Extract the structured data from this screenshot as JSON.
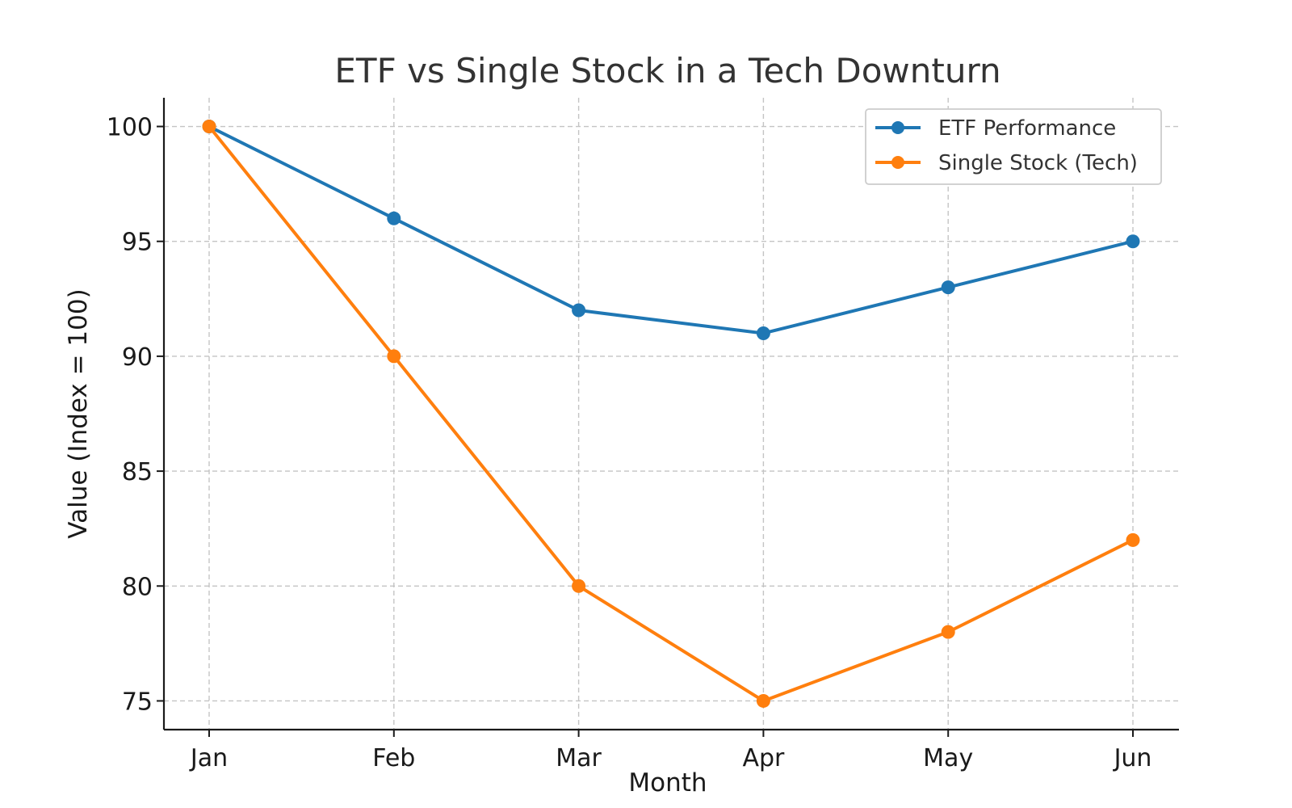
{
  "chart_data": {
    "type": "line",
    "title": "ETF vs Single Stock in a Tech Downturn",
    "xlabel": "Month",
    "ylabel": "Value (Index = 100)",
    "categories": [
      "Jan",
      "Feb",
      "Mar",
      "Apr",
      "May",
      "Jun"
    ],
    "series": [
      {
        "name": "ETF Performance",
        "color": "#1f77b4",
        "values": [
          100,
          96,
          92,
          91,
          93,
          95
        ]
      },
      {
        "name": "Single Stock (Tech)",
        "color": "#ff7f0e",
        "values": [
          100,
          90,
          80,
          75,
          78,
          82
        ]
      }
    ],
    "ylim": [
      73.75,
      101.25
    ],
    "yticks": [
      75,
      80,
      85,
      90,
      95,
      100
    ],
    "grid": true,
    "legend_position": "top-right"
  }
}
